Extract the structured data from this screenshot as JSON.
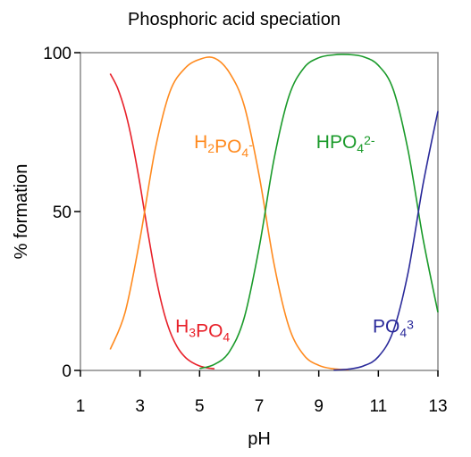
{
  "chart_data": {
    "type": "line",
    "title": "Phosphoric acid speciation",
    "xlabel": "pH",
    "ylabel": "% formation",
    "xlim": [
      1,
      13
    ],
    "ylim": [
      0,
      100
    ],
    "xticks": [
      1,
      3,
      5,
      7,
      9,
      11,
      13
    ],
    "yticks": [
      0,
      50,
      100
    ],
    "grid": false,
    "pKa": [
      2.15,
      7.2,
      12.35
    ],
    "series": [
      {
        "name": "H3PO4",
        "label_parts": [
          [
            "H",
            ""
          ],
          [
            "3",
            "sub"
          ],
          [
            "PO",
            ""
          ],
          [
            "4",
            "sub"
          ]
        ],
        "color": "#e8212a",
        "x": [
          2.0,
          2.25,
          2.5,
          2.75,
          3.0,
          3.25,
          3.5,
          3.75,
          4.0,
          4.25,
          4.5,
          4.75,
          5.0,
          5.25,
          5.5
        ],
        "y": [
          93.4,
          88.8,
          81.6,
          71.4,
          58.5,
          44.2,
          30.9,
          20.1,
          12.4,
          7.4,
          4.3,
          2.5,
          1.4,
          0.8,
          0.5
        ]
      },
      {
        "name": "H2PO4-",
        "label_parts": [
          [
            "H",
            ""
          ],
          [
            "2",
            "sub"
          ],
          [
            "PO",
            ""
          ],
          [
            "4",
            "sub"
          ],
          [
            "-",
            "sup"
          ]
        ],
        "color": "#ff8a1e",
        "x": [
          2.0,
          2.5,
          3.0,
          3.5,
          4.0,
          4.5,
          5.0,
          5.5,
          6.0,
          6.5,
          7.0,
          7.5,
          8.0,
          8.5,
          9.0,
          9.5,
          10.0
        ],
        "y": [
          6.6,
          18.3,
          41.5,
          69.1,
          87.6,
          95.0,
          97.9,
          98.3,
          93.7,
          83.3,
          61.3,
          33.4,
          13.7,
          4.8,
          1.6,
          0.5,
          0.2
        ]
      },
      {
        "name": "HPO42-",
        "label_parts": [
          [
            "HPO",
            ""
          ],
          [
            "4",
            "sub"
          ],
          [
            "2-",
            "sup"
          ]
        ],
        "color": "#1a9a2a",
        "x": [
          5.0,
          5.5,
          6.0,
          6.5,
          7.0,
          7.5,
          8.0,
          8.5,
          9.0,
          9.5,
          10.0,
          10.5,
          11.0,
          11.5,
          12.0,
          12.5,
          13.0
        ],
        "y": [
          0.6,
          1.9,
          5.9,
          16.6,
          38.7,
          66.6,
          86.3,
          95.2,
          98.4,
          99.3,
          99.4,
          98.7,
          96.0,
          88.4,
          69.1,
          41.5,
          18.3
        ]
      },
      {
        "name": "PO43",
        "label_parts": [
          [
            "PO",
            ""
          ],
          [
            "4",
            "sub"
          ],
          [
            "3",
            "sup"
          ]
        ],
        "color": "#2a2a9a",
        "x": [
          9.5,
          10.0,
          10.5,
          11.0,
          11.5,
          12.0,
          12.5,
          13.0
        ],
        "y": [
          0.1,
          0.4,
          1.4,
          4.3,
          12.4,
          30.9,
          58.5,
          81.6
        ]
      }
    ]
  }
}
